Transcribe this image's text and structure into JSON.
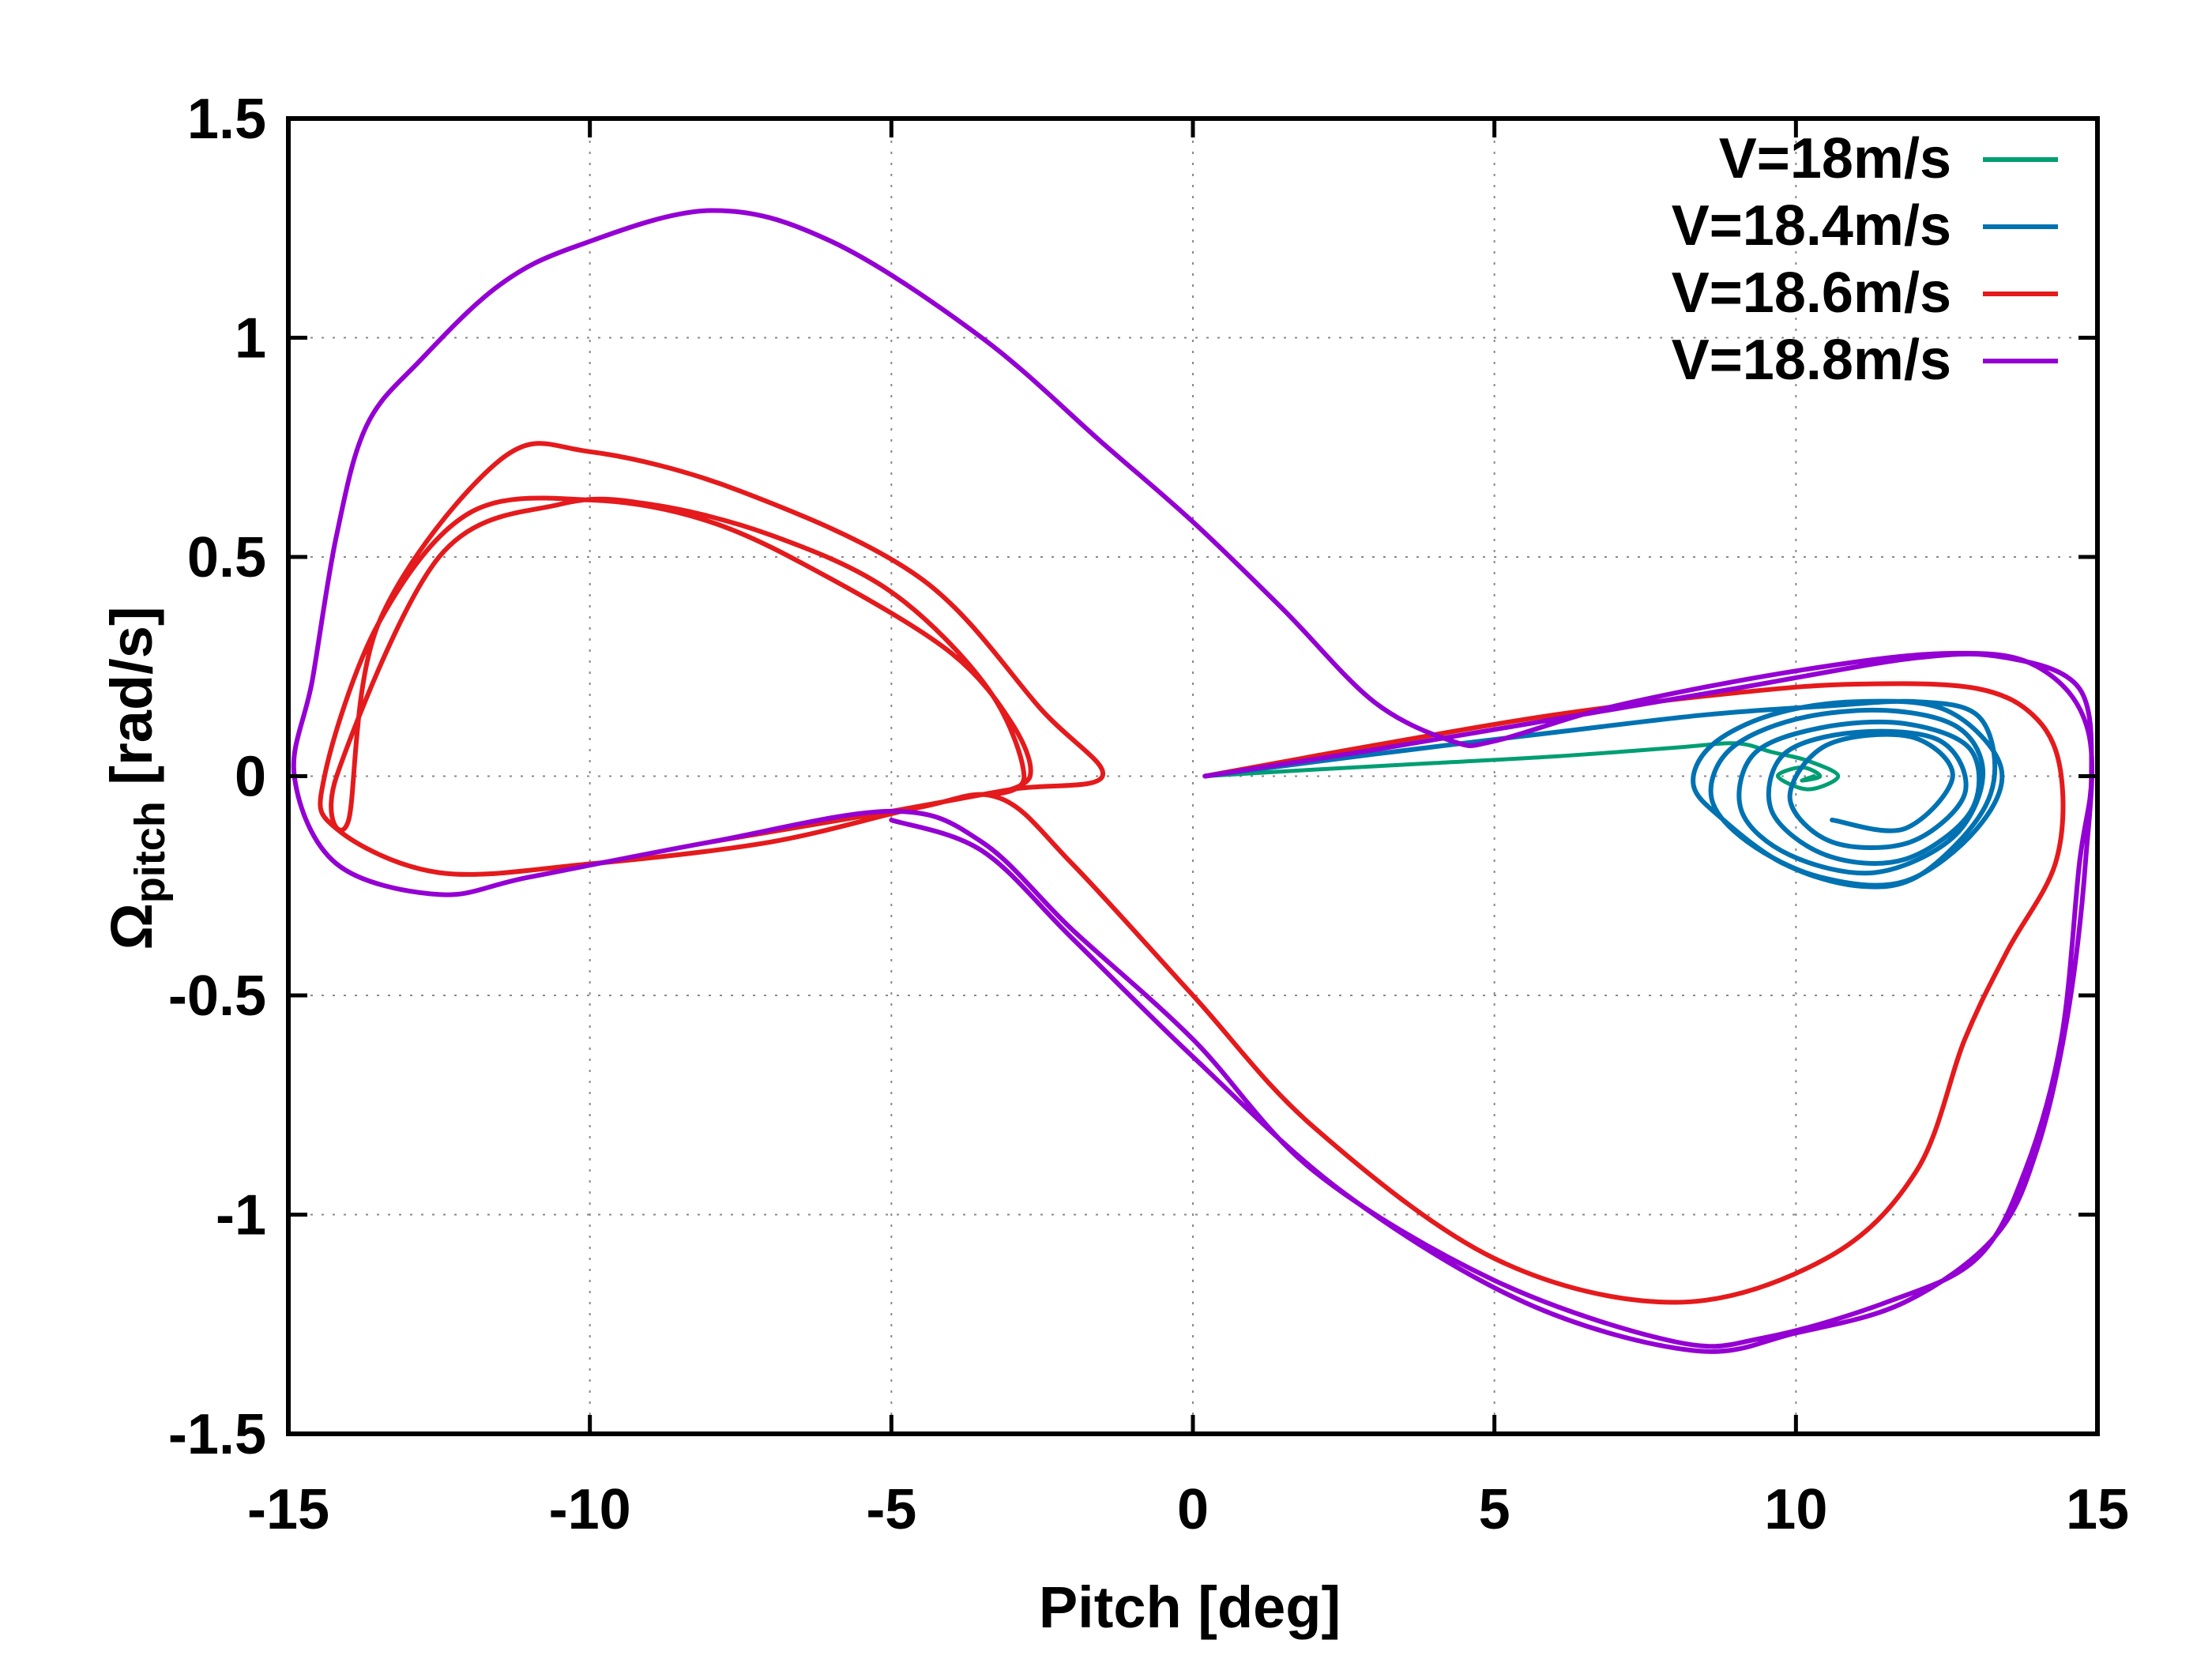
{
  "chart_data": {
    "type": "line",
    "title": "",
    "xlabel": "Pitch [deg]",
    "ylabel_main": "Ω",
    "ylabel_sub": "pitch",
    "ylabel_rest": " [rad/s]",
    "xlim": [
      -15,
      15
    ],
    "ylim": [
      -1.5,
      1.5
    ],
    "xticks": [
      -15,
      -10,
      -5,
      0,
      5,
      10,
      15
    ],
    "xtick_labels": [
      "-15",
      "-10",
      "-5",
      "0",
      "5",
      "10",
      "15"
    ],
    "yticks": [
      -1.5,
      -1,
      -0.5,
      0,
      0.5,
      1,
      1.5
    ],
    "ytick_labels": [
      "-1.5",
      "-1",
      "-0.5",
      "0",
      "0.5",
      "1",
      "1.5"
    ],
    "grid": true,
    "legend_position": "top-right",
    "series": [
      {
        "name": "V=18m/s",
        "color": "#009e73",
        "points": [
          [
            0.2,
            0.0
          ],
          [
            2.0,
            0.015
          ],
          [
            4.0,
            0.03
          ],
          [
            6.0,
            0.045
          ],
          [
            8.0,
            0.065
          ],
          [
            9.0,
            0.075
          ],
          [
            9.6,
            0.055
          ],
          [
            10.2,
            0.035
          ],
          [
            10.7,
            0.0
          ],
          [
            10.2,
            -0.03
          ],
          [
            9.7,
            0.0
          ],
          [
            10.1,
            0.02
          ],
          [
            10.4,
            0.0
          ],
          [
            10.1,
            -0.01
          ],
          [
            10.3,
            0.0
          ]
        ]
      },
      {
        "name": "V=18.4m/s",
        "color": "#0072b2",
        "points": [
          [
            0.2,
            0.0
          ],
          [
            3.0,
            0.05
          ],
          [
            6.0,
            0.1
          ],
          [
            8.5,
            0.14
          ],
          [
            10.5,
            0.16
          ],
          [
            12.0,
            0.17
          ],
          [
            13.0,
            0.14
          ],
          [
            13.3,
            0.02
          ],
          [
            13.0,
            -0.1
          ],
          [
            12.0,
            -0.23
          ],
          [
            11.0,
            -0.25
          ],
          [
            9.8,
            -0.2
          ],
          [
            8.8,
            -0.1
          ],
          [
            8.3,
            -0.02
          ],
          [
            8.6,
            0.07
          ],
          [
            9.6,
            0.14
          ],
          [
            11.0,
            0.17
          ],
          [
            12.5,
            0.15
          ],
          [
            13.4,
            0.02
          ],
          [
            13.0,
            -0.12
          ],
          [
            11.8,
            -0.24
          ],
          [
            10.4,
            -0.23
          ],
          [
            9.2,
            -0.15
          ],
          [
            8.6,
            -0.05
          ],
          [
            8.9,
            0.06
          ],
          [
            10.0,
            0.13
          ],
          [
            11.5,
            0.15
          ],
          [
            12.7,
            0.11
          ],
          [
            13.1,
            0.0
          ],
          [
            12.6,
            -0.14
          ],
          [
            11.3,
            -0.22
          ],
          [
            9.9,
            -0.18
          ],
          [
            9.1,
            -0.08
          ],
          [
            9.3,
            0.05
          ],
          [
            10.4,
            0.11
          ],
          [
            11.8,
            0.12
          ],
          [
            12.9,
            0.06
          ],
          [
            12.9,
            -0.08
          ],
          [
            11.8,
            -0.19
          ],
          [
            10.5,
            -0.18
          ],
          [
            9.6,
            -0.08
          ],
          [
            9.8,
            0.05
          ],
          [
            11.0,
            0.1
          ],
          [
            12.4,
            0.08
          ],
          [
            12.8,
            -0.04
          ],
          [
            11.9,
            -0.15
          ],
          [
            10.6,
            -0.15
          ],
          [
            9.9,
            -0.05
          ],
          [
            10.5,
            0.07
          ],
          [
            11.9,
            0.09
          ],
          [
            12.6,
            0.0
          ],
          [
            11.8,
            -0.12
          ],
          [
            10.6,
            -0.1
          ]
        ]
      },
      {
        "name": "V=18.6m/s",
        "color": "#e41a1c",
        "points": [
          [
            0.2,
            0.0
          ],
          [
            3.0,
            0.07
          ],
          [
            6.0,
            0.14
          ],
          [
            9.0,
            0.19
          ],
          [
            11.0,
            0.21
          ],
          [
            13.0,
            0.2
          ],
          [
            14.0,
            0.13
          ],
          [
            14.4,
            0.0
          ],
          [
            14.3,
            -0.2
          ],
          [
            13.5,
            -0.4
          ],
          [
            12.8,
            -0.6
          ],
          [
            12.0,
            -0.9
          ],
          [
            10.5,
            -1.1
          ],
          [
            8.0,
            -1.2
          ],
          [
            5.0,
            -1.1
          ],
          [
            2.0,
            -0.8
          ],
          [
            0.0,
            -0.5
          ],
          [
            -2.0,
            -0.2
          ],
          [
            -3.2,
            -0.05
          ],
          [
            -4.5,
            -0.07
          ],
          [
            -7.0,
            -0.15
          ],
          [
            -10.0,
            -0.2
          ],
          [
            -12.5,
            -0.22
          ],
          [
            -14.2,
            -0.12
          ],
          [
            -14.4,
            0.0
          ],
          [
            -13.5,
            0.35
          ],
          [
            -12.0,
            0.6
          ],
          [
            -10.0,
            0.63
          ],
          [
            -8.0,
            0.58
          ],
          [
            -6.0,
            0.45
          ],
          [
            -4.0,
            0.28
          ],
          [
            -3.0,
            0.12
          ],
          [
            -2.7,
            0.0
          ],
          [
            -3.3,
            -0.04
          ],
          [
            -2.8,
            0.0
          ],
          [
            -3.4,
            0.2
          ],
          [
            -5.0,
            0.42
          ],
          [
            -7.0,
            0.55
          ],
          [
            -9.0,
            0.62
          ],
          [
            -10.5,
            0.62
          ],
          [
            -12.5,
            0.5
          ],
          [
            -14.2,
            0.0
          ],
          [
            -14.0,
            -0.1
          ],
          [
            -13.5,
            0.35
          ],
          [
            -11.5,
            0.72
          ],
          [
            -10.0,
            0.74
          ],
          [
            -7.5,
            0.65
          ],
          [
            -4.5,
            0.45
          ],
          [
            -2.5,
            0.15
          ],
          [
            -1.5,
            0.0
          ],
          [
            -3.0,
            -0.03
          ],
          [
            -5.0,
            -0.08
          ],
          [
            -8.0,
            -0.15
          ]
        ]
      },
      {
        "name": "V=18.8m/s",
        "color": "#9400d3",
        "points": [
          [
            0.2,
            0.0
          ],
          [
            3.0,
            0.06
          ],
          [
            6.0,
            0.13
          ],
          [
            9.0,
            0.2
          ],
          [
            12.0,
            0.27
          ],
          [
            13.5,
            0.27
          ],
          [
            14.7,
            0.2
          ],
          [
            14.9,
            0.0
          ],
          [
            14.7,
            -0.2
          ],
          [
            14.4,
            -0.6
          ],
          [
            13.8,
            -0.9
          ],
          [
            13.0,
            -1.1
          ],
          [
            11.5,
            -1.2
          ],
          [
            9.5,
            -1.28
          ],
          [
            8.0,
            -1.29
          ],
          [
            5.0,
            -1.15
          ],
          [
            2.0,
            -0.9
          ],
          [
            0.0,
            -0.6
          ],
          [
            -2.0,
            -0.35
          ],
          [
            -3.5,
            -0.15
          ],
          [
            -5.0,
            -0.08
          ],
          [
            -8.0,
            -0.15
          ],
          [
            -11.0,
            -0.23
          ],
          [
            -12.5,
            -0.27
          ],
          [
            -14.2,
            -0.2
          ],
          [
            -14.9,
            0.0
          ],
          [
            -14.6,
            0.22
          ],
          [
            -14.2,
            0.55
          ],
          [
            -13.7,
            0.8
          ],
          [
            -12.8,
            0.95
          ],
          [
            -11.5,
            1.12
          ],
          [
            -10.2,
            1.21
          ],
          [
            -8.0,
            1.29
          ],
          [
            -6.0,
            1.22
          ],
          [
            -3.5,
            1.0
          ],
          [
            -1.5,
            0.76
          ],
          [
            0.0,
            0.58
          ],
          [
            1.5,
            0.38
          ],
          [
            3.0,
            0.17
          ],
          [
            4.3,
            0.08
          ],
          [
            5.0,
            0.08
          ],
          [
            7.0,
            0.16
          ],
          [
            10.0,
            0.24
          ],
          [
            12.5,
            0.28
          ],
          [
            14.0,
            0.25
          ],
          [
            14.85,
            0.1
          ],
          [
            14.8,
            -0.2
          ],
          [
            14.5,
            -0.55
          ],
          [
            14.0,
            -0.85
          ],
          [
            13.3,
            -1.05
          ],
          [
            11.8,
            -1.2
          ],
          [
            10.0,
            -1.27
          ],
          [
            8.3,
            -1.31
          ],
          [
            5.5,
            -1.2
          ],
          [
            2.5,
            -0.95
          ],
          [
            0.0,
            -0.64
          ],
          [
            -2.0,
            -0.37
          ],
          [
            -3.5,
            -0.17
          ],
          [
            -5.0,
            -0.1
          ]
        ]
      }
    ]
  }
}
